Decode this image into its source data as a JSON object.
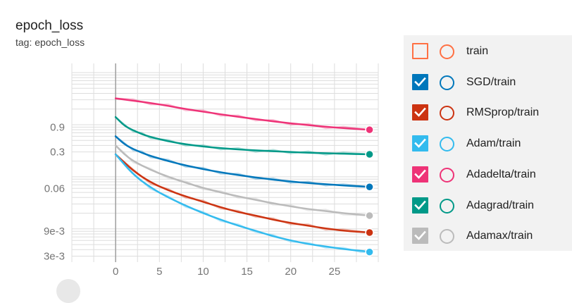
{
  "header": {
    "title": "epoch_loss",
    "tag": "tag: epoch_loss"
  },
  "legend": {
    "items": [
      {
        "label": "train",
        "color": "#ff7043",
        "checked": false
      },
      {
        "label": "SGD/train",
        "color": "#0077bb",
        "checked": true
      },
      {
        "label": "RMSprop/train",
        "color": "#cc3311",
        "checked": true
      },
      {
        "label": "Adam/train",
        "color": "#33bbee",
        "checked": true
      },
      {
        "label": "Adadelta/train",
        "color": "#ee3377",
        "checked": true
      },
      {
        "label": "Adagrad/train",
        "color": "#009988",
        "checked": true
      },
      {
        "label": "Adamax/train",
        "color": "#bbbbbb",
        "checked": true
      }
    ]
  },
  "chart_data": {
    "type": "line",
    "title": "epoch_loss",
    "subtitle": "tag: epoch_loss",
    "xlabel": "",
    "ylabel": "",
    "y_scale": "log",
    "xlim": [
      -5,
      30
    ],
    "ylim": [
      0.0023,
      15
    ],
    "x_ticks": [
      0,
      5,
      10,
      15,
      20,
      25
    ],
    "x_tick_labels": [
      "0",
      "5",
      "10",
      "15",
      "20",
      "25"
    ],
    "y_ticks": [
      0.003,
      0.009,
      0.06,
      0.3,
      0.9
    ],
    "y_tick_labels": [
      "3e-3",
      "9e-3",
      "0.06",
      "0.3",
      "0.9"
    ],
    "grid": true,
    "legend_position": "right",
    "series": [
      {
        "name": "Adadelta/train",
        "color": "#ee3377",
        "x": [
          0,
          2,
          4,
          6,
          8,
          10,
          12,
          14,
          16,
          18,
          20,
          22,
          24,
          26,
          29
        ],
        "y": [
          3.2,
          2.9,
          2.6,
          2.3,
          2.0,
          1.78,
          1.58,
          1.42,
          1.28,
          1.16,
          1.06,
          0.98,
          0.91,
          0.86,
          0.8
        ]
      },
      {
        "name": "Adagrad/train",
        "color": "#009988",
        "x": [
          0,
          1,
          2,
          3,
          4,
          6,
          8,
          10,
          12,
          14,
          16,
          18,
          20,
          22,
          24,
          26,
          29
        ],
        "y": [
          1.4,
          0.95,
          0.78,
          0.66,
          0.58,
          0.48,
          0.42,
          0.38,
          0.355,
          0.335,
          0.32,
          0.31,
          0.3,
          0.29,
          0.283,
          0.277,
          0.27
        ]
      },
      {
        "name": "SGD/train",
        "color": "#0077bb",
        "x": [
          0,
          1,
          2,
          3,
          4,
          6,
          8,
          10,
          12,
          14,
          16,
          18,
          20,
          22,
          24,
          26,
          29
        ],
        "y": [
          0.6,
          0.42,
          0.34,
          0.29,
          0.25,
          0.2,
          0.165,
          0.14,
          0.122,
          0.108,
          0.097,
          0.088,
          0.081,
          0.076,
          0.072,
          0.068,
          0.064
        ]
      },
      {
        "name": "Adamax/train",
        "color": "#bbbbbb",
        "x": [
          0,
          1,
          2,
          4,
          6,
          8,
          10,
          12,
          14,
          16,
          18,
          20,
          22,
          24,
          26,
          29
        ],
        "y": [
          0.4,
          0.27,
          0.2,
          0.135,
          0.1,
          0.077,
          0.061,
          0.05,
          0.042,
          0.036,
          0.031,
          0.027,
          0.024,
          0.022,
          0.02,
          0.018
        ]
      },
      {
        "name": "RMSprop/train",
        "color": "#cc3311",
        "x": [
          0,
          2,
          4,
          6,
          8,
          10,
          12,
          14,
          16,
          18,
          20,
          22,
          24,
          26,
          29
        ],
        "y": [
          0.27,
          0.13,
          0.078,
          0.055,
          0.042,
          0.033,
          0.026,
          0.021,
          0.018,
          0.015,
          0.013,
          0.0115,
          0.0102,
          0.0092,
          0.0085
        ]
      },
      {
        "name": "Adam/train",
        "color": "#33bbee",
        "x": [
          0,
          2,
          4,
          6,
          8,
          10,
          12,
          14,
          16,
          18,
          20,
          22,
          24,
          26,
          28,
          29
        ],
        "y": [
          0.27,
          0.11,
          0.062,
          0.04,
          0.028,
          0.02,
          0.015,
          0.0115,
          0.0092,
          0.0072,
          0.006,
          0.0051,
          0.0046,
          0.0041,
          0.0038,
          0.0036
        ]
      }
    ]
  }
}
